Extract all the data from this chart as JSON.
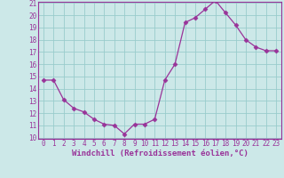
{
  "x": [
    0,
    1,
    2,
    3,
    4,
    5,
    6,
    7,
    8,
    9,
    10,
    11,
    12,
    13,
    14,
    15,
    16,
    17,
    18,
    19,
    20,
    21,
    22,
    23
  ],
  "y": [
    14.7,
    14.7,
    13.1,
    12.4,
    12.1,
    11.5,
    11.1,
    11.0,
    10.3,
    11.1,
    11.1,
    11.5,
    14.7,
    16.0,
    19.4,
    19.8,
    20.5,
    21.2,
    20.2,
    19.2,
    18.0,
    17.4,
    17.1,
    17.1
  ],
  "line_color": "#993399",
  "marker": "D",
  "marker_size": 2.5,
  "bg_color": "#cce8e8",
  "grid_color": "#99cccc",
  "xlabel": "Windchill (Refroidissement éolien,°C)",
  "ylim": [
    10,
    21
  ],
  "xlim": [
    -0.5,
    23.5
  ],
  "yticks": [
    10,
    11,
    12,
    13,
    14,
    15,
    16,
    17,
    18,
    19,
    20,
    21
  ],
  "xticks": [
    0,
    1,
    2,
    3,
    4,
    5,
    6,
    7,
    8,
    9,
    10,
    11,
    12,
    13,
    14,
    15,
    16,
    17,
    18,
    19,
    20,
    21,
    22,
    23
  ],
  "tick_color": "#993399",
  "label_color": "#993399",
  "spine_color": "#993399",
  "xlabel_fontsize": 6.5,
  "tick_fontsize": 5.5
}
